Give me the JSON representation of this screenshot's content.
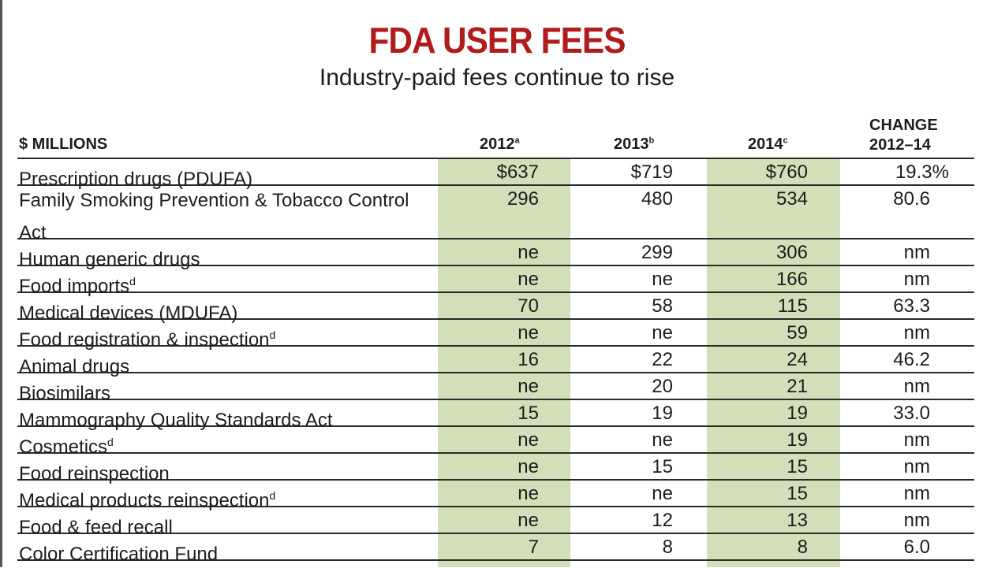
{
  "title": "FDA USER FEES",
  "subtitle": "Industry-paid fees continue to rise",
  "headers": {
    "label": "$ MILLIONS",
    "y2012": "2012",
    "y2012_note": "a",
    "y2013": "2013",
    "y2013_note": "b",
    "y2014": "2014",
    "y2014_note": "c",
    "change_line1": "CHANGE",
    "change_line2": "2012–14"
  },
  "rows": [
    {
      "label": "Prescription drugs (PDUFA)",
      "note": "",
      "v2012": "$637",
      "v2013": "$719",
      "v2014": "$760",
      "change": "19.3%"
    },
    {
      "label": "Family Smoking Prevention & Tobacco Control Act",
      "note": "",
      "v2012": "296",
      "v2013": "480",
      "v2014": "534",
      "change": "80.6"
    },
    {
      "label": "Human generic drugs",
      "note": "",
      "v2012": "ne",
      "v2013": "299",
      "v2014": "306",
      "change": "nm"
    },
    {
      "label": "Food imports",
      "note": "d",
      "v2012": "ne",
      "v2013": "ne",
      "v2014": "166",
      "change": "nm"
    },
    {
      "label": "Medical devices (MDUFA)",
      "note": "",
      "v2012": "70",
      "v2013": "58",
      "v2014": "115",
      "change": "63.3"
    },
    {
      "label": "Food registration & inspection",
      "note": "d",
      "v2012": "ne",
      "v2013": "ne",
      "v2014": "59",
      "change": "nm"
    },
    {
      "label": "Animal drugs",
      "note": "",
      "v2012": "16",
      "v2013": "22",
      "v2014": "24",
      "change": "46.2"
    },
    {
      "label": "Biosimilars",
      "note": "",
      "v2012": "ne",
      "v2013": "20",
      "v2014": "21",
      "change": "nm"
    },
    {
      "label": "Mammography Quality Standards Act",
      "note": "",
      "v2012": "15",
      "v2013": "19",
      "v2014": "19",
      "change": "33.0"
    },
    {
      "label": "Cosmetics",
      "note": "d",
      "v2012": "ne",
      "v2013": "ne",
      "v2014": "19",
      "change": "nm"
    },
    {
      "label": "Food reinspection",
      "note": "",
      "v2012": "ne",
      "v2013": "15",
      "v2014": "15",
      "change": "nm"
    },
    {
      "label": "Medical products reinspection",
      "note": "d",
      "v2012": "ne",
      "v2013": "ne",
      "v2014": "15",
      "change": "nm"
    },
    {
      "label": "Food & feed recall",
      "note": "",
      "v2012": "ne",
      "v2013": "12",
      "v2014": "13",
      "change": "nm"
    },
    {
      "label": "Color Certification Fund",
      "note": "",
      "v2012": "7",
      "v2013": "8",
      "v2014": "8",
      "change": "6.0"
    }
  ],
  "colors": {
    "title": "#b01c1c",
    "highlight": "#d3dfb8"
  }
}
